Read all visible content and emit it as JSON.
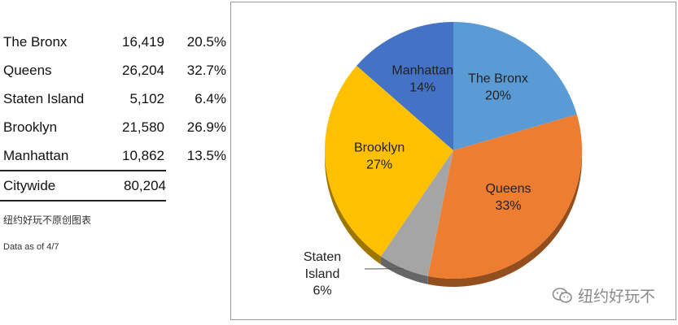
{
  "table": {
    "rows": [
      {
        "name": "The Bronx",
        "count": "16,419",
        "pct": "20.5%"
      },
      {
        "name": "Queens",
        "count": "26,204",
        "pct": "32.7%"
      },
      {
        "name": "Staten Island",
        "count": "5,102",
        "pct": "6.4%"
      },
      {
        "name": "Brooklyn",
        "count": "21,580",
        "pct": "26.9%"
      },
      {
        "name": "Manhattan",
        "count": "10,862",
        "pct": "13.5%"
      }
    ],
    "total": {
      "name": "Citywide",
      "count": "80,204"
    }
  },
  "notes": {
    "source": "纽约好玩不原创图表",
    "date": "Data as of 4/7"
  },
  "watermark": {
    "text": "纽约好玩不",
    "icon": "wechat-icon"
  },
  "chart_data": {
    "type": "pie",
    "slices": [
      {
        "name": "The Bronx",
        "value": 16419,
        "label": "20%",
        "color": "#5B9BD5"
      },
      {
        "name": "Queens",
        "value": 26204,
        "label": "33%",
        "color": "#ED7D31"
      },
      {
        "name": "Staten Island",
        "value": 5102,
        "label": "6%",
        "color": "#A5A5A5"
      },
      {
        "name": "Brooklyn",
        "value": 21580,
        "label": "27%",
        "color": "#FFC000"
      },
      {
        "name": "Manhattan",
        "value": 10862,
        "label": "14%",
        "color": "#4472C4"
      }
    ],
    "start": "12 o'clock",
    "direction": "clockwise"
  }
}
